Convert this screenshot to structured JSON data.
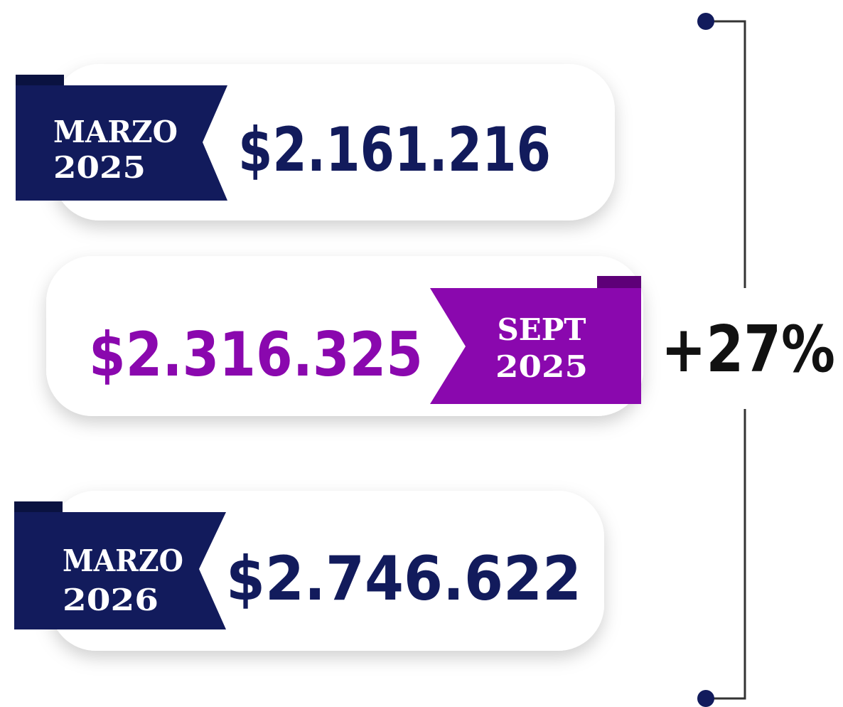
{
  "items": [
    {
      "label": [
        "MARZO",
        "2025"
      ],
      "amount": "$2.161.216"
    },
    {
      "label": [
        "SEPT",
        "2025"
      ],
      "amount": "$2.316.325"
    },
    {
      "label": [
        "MARZO",
        "2026"
      ],
      "amount": "$2.746.622"
    }
  ],
  "change": "+27%"
}
